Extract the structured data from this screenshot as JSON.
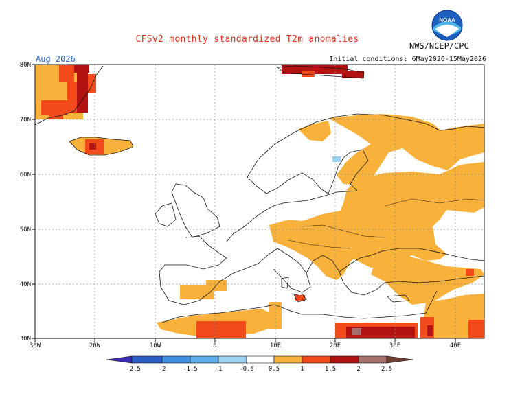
{
  "title": "CFSv2 monthly standardized T2m anomalies",
  "agency": "NWS/NCEP/CPC",
  "logo_text": "NOAA",
  "month": "Aug 2026",
  "initial_conditions": "Initial conditions: 6May2026-15May2026",
  "lat_labels": [
    "80N",
    "70N",
    "60N",
    "50N",
    "40N",
    "30N"
  ],
  "lon_labels": [
    "30W",
    "20W",
    "10W",
    "0",
    "10E",
    "20E",
    "30E",
    "40E"
  ],
  "colorbar": {
    "tick_labels": [
      "-2.5",
      "-2",
      "-1.5",
      "-1",
      "-0.5",
      "0.5",
      "1",
      "1.5",
      "2",
      "2.5"
    ],
    "colors": [
      "#3b2db0",
      "#2b5fc8",
      "#3f8fe3",
      "#5dadea",
      "#9dd3f2",
      "#ffffff",
      "#f8b13a",
      "#f24a1a",
      "#b31311",
      "#a8706a",
      "#6e3e33"
    ]
  },
  "colors": {
    "title": "#e0301e",
    "month": "#2b62c9",
    "anom_05_1": "#f8b13a",
    "anom_1_15": "#f24a1a",
    "anom_15_2": "#b31311",
    "anom_2_25": "#a8706a",
    "anom_neg": "#9dd3f2"
  }
}
